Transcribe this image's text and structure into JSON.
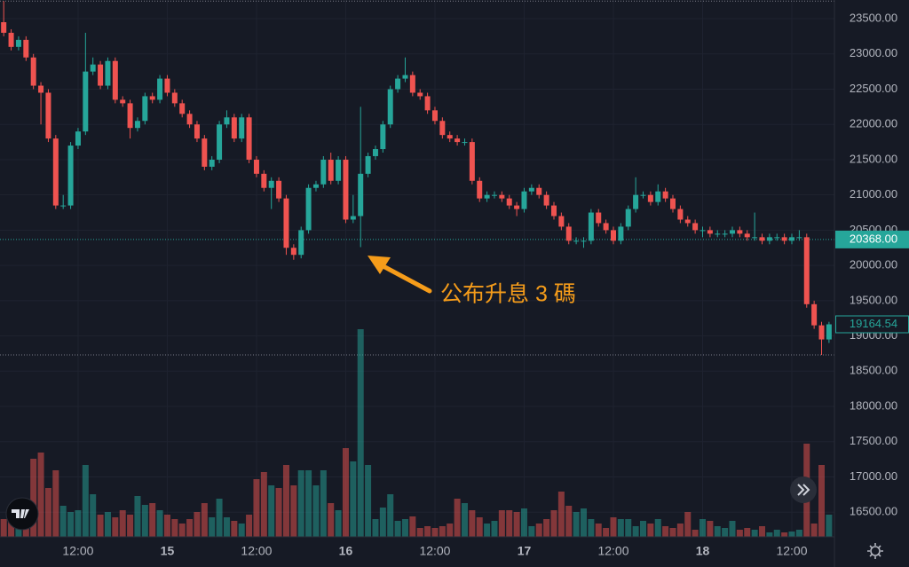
{
  "chart_data": {
    "type": "candlestick",
    "open": [
      23450,
      23300,
      23100,
      23200,
      22950,
      22550,
      22450,
      21800,
      20850,
      20850,
      21700,
      21900,
      22750,
      22850,
      22550,
      22900,
      22350,
      22300,
      21950,
      22050,
      22400,
      22350,
      22650,
      22450,
      22300,
      22150,
      22000,
      21800,
      21400,
      21500,
      22000,
      22100,
      21800,
      22100,
      21500,
      21300,
      21100,
      21200,
      20950,
      20250,
      20150,
      20500,
      21100,
      21150,
      21500,
      21200,
      21500,
      20650,
      20700,
      21300,
      21550,
      21650,
      22000,
      22500,
      22650,
      22700,
      22450,
      22400,
      22200,
      22050,
      21850,
      21800,
      21750,
      21750,
      21200,
      20950,
      21000,
      21000,
      20950,
      20850,
      20800,
      21050,
      21100,
      21000,
      20850,
      20700,
      20550,
      20350,
      20350,
      20350,
      20750,
      20600,
      20500,
      20350,
      20550,
      20800,
      21000,
      21000,
      20900,
      21050,
      20950,
      20800,
      20650,
      20600,
      20500,
      20500,
      20450,
      20450,
      20450,
      20500,
      20450,
      20400,
      20400,
      20350,
      20400,
      20400,
      20350,
      20400,
      20400,
      19450,
      19150,
      18950
    ],
    "high": [
      23750,
      23350,
      23250,
      23250,
      23000,
      22600,
      22500,
      21850,
      21000,
      21750,
      21950,
      23300,
      22950,
      22900,
      22950,
      22950,
      22400,
      22350,
      22100,
      22450,
      22450,
      22700,
      22700,
      22500,
      22350,
      22200,
      22050,
      21850,
      21550,
      22050,
      22200,
      22150,
      22150,
      22150,
      21550,
      21350,
      21250,
      21250,
      21000,
      20300,
      20550,
      21150,
      21200,
      21550,
      21600,
      21550,
      21550,
      21000,
      22250,
      21600,
      21700,
      22050,
      22550,
      22700,
      22950,
      22750,
      22500,
      22450,
      22250,
      22100,
      21900,
      21850,
      21800,
      21800,
      21250,
      21050,
      21050,
      21050,
      21000,
      20900,
      21100,
      21150,
      21150,
      21050,
      20900,
      20750,
      20600,
      20400,
      20400,
      20800,
      20800,
      20650,
      20550,
      20600,
      20850,
      21250,
      21050,
      21050,
      21150,
      21100,
      21000,
      20850,
      20700,
      20650,
      20550,
      20550,
      20500,
      20500,
      20550,
      20550,
      20500,
      20750,
      20450,
      20450,
      20450,
      20450,
      20450,
      20500,
      20450,
      19500,
      19200,
      19200
    ],
    "low": [
      23250,
      23050,
      23050,
      22900,
      22500,
      22000,
      21750,
      20800,
      20800,
      20800,
      21650,
      21850,
      22700,
      22500,
      22500,
      22300,
      22250,
      21800,
      21900,
      22000,
      22300,
      22300,
      22400,
      22250,
      22100,
      21950,
      21750,
      21350,
      21350,
      21450,
      21950,
      21750,
      21750,
      21450,
      21250,
      21050,
      20800,
      20900,
      20150,
      20080,
      20100,
      20450,
      21050,
      21100,
      21150,
      21150,
      20600,
      20600,
      20260,
      21250,
      21500,
      21600,
      21950,
      22450,
      22600,
      22400,
      22350,
      22150,
      22000,
      21800,
      21750,
      21700,
      21700,
      21150,
      20900,
      20900,
      20950,
      20900,
      20800,
      20700,
      20750,
      21000,
      20950,
      20800,
      20650,
      20500,
      20300,
      20300,
      20250,
      20300,
      20550,
      20450,
      20300,
      20300,
      20500,
      20750,
      20950,
      20850,
      20850,
      20900,
      20750,
      20600,
      20550,
      20450,
      20400,
      20400,
      20400,
      20400,
      20400,
      20400,
      20350,
      20350,
      20300,
      20300,
      20350,
      20300,
      20300,
      20350,
      19400,
      19100,
      18730,
      18900
    ],
    "close": [
      23300,
      23100,
      23200,
      22950,
      22550,
      22450,
      21800,
      20850,
      20850,
      21700,
      21900,
      22750,
      22850,
      22550,
      22900,
      22350,
      22300,
      21950,
      22050,
      22400,
      22350,
      22650,
      22450,
      22300,
      22150,
      22000,
      21800,
      21400,
      21500,
      22000,
      22100,
      21800,
      22100,
      21500,
      21300,
      21100,
      21200,
      20950,
      20250,
      20150,
      20500,
      21100,
      21150,
      21500,
      21200,
      21500,
      20650,
      20700,
      21300,
      21550,
      21650,
      22000,
      22500,
      22650,
      22700,
      22450,
      22400,
      22200,
      22050,
      21850,
      21800,
      21750,
      21750,
      21200,
      20950,
      21000,
      21000,
      20950,
      20850,
      20800,
      21050,
      21100,
      21000,
      20850,
      20700,
      20550,
      20350,
      20350,
      20350,
      20750,
      20600,
      20500,
      20350,
      20550,
      20800,
      21000,
      21000,
      20900,
      21050,
      20950,
      20800,
      20650,
      20600,
      20500,
      20500,
      20450,
      20450,
      20450,
      20500,
      20450,
      20400,
      20400,
      20350,
      20400,
      20400,
      20350,
      20400,
      20400,
      19450,
      19150,
      18950,
      19164.54
    ],
    "volume": [
      20,
      25,
      40,
      30,
      88,
      95,
      55,
      75,
      35,
      28,
      30,
      81,
      48,
      25,
      28,
      22,
      30,
      25,
      46,
      36,
      38,
      30,
      25,
      20,
      15,
      20,
      28,
      38,
      22,
      43,
      22,
      18,
      15,
      25,
      65,
      73,
      58,
      55,
      81,
      58,
      75,
      75,
      58,
      75,
      38,
      30,
      100,
      85,
      234,
      81,
      20,
      33,
      48,
      18,
      20,
      23,
      10,
      12,
      10,
      12,
      15,
      43,
      38,
      30,
      22,
      15,
      18,
      30,
      30,
      28,
      32,
      12,
      15,
      20,
      30,
      51,
      35,
      28,
      32,
      20,
      15,
      10,
      22,
      20,
      20,
      12,
      18,
      15,
      20,
      12,
      10,
      15,
      28,
      8,
      20,
      18,
      12,
      10,
      18,
      8,
      10,
      8,
      12,
      5,
      8,
      5,
      6,
      8,
      105,
      15,
      81,
      25
    ],
    "up_color": "#26a69a",
    "down_color": "#ef5350",
    "ylim": [
      16150,
      23765
    ],
    "yticks": [
      {
        "value": 16500,
        "label": "16500.00"
      },
      {
        "value": 17000,
        "label": "17000.00"
      },
      {
        "value": 17500,
        "label": "17500.00"
      },
      {
        "value": 18000,
        "label": "18000.00"
      },
      {
        "value": 18500,
        "label": "18500.00"
      },
      {
        "value": 19000,
        "label": "19000.00"
      },
      {
        "value": 19500,
        "label": "19500.00"
      },
      {
        "value": 20000,
        "label": "20000.00"
      },
      {
        "value": 20500,
        "label": "20500.00"
      },
      {
        "value": 21000,
        "label": "21000.00"
      },
      {
        "value": 21500,
        "label": "21500.00"
      },
      {
        "value": 22000,
        "label": "22000.00"
      },
      {
        "value": 22500,
        "label": "22500.00"
      },
      {
        "value": 23000,
        "label": "23000.00"
      },
      {
        "value": 23500,
        "label": "23500.00"
      }
    ],
    "xlim": [
      -0.5,
      111.73
    ],
    "xticks": [
      {
        "value": 10,
        "label": "12:00"
      },
      {
        "value": 22,
        "label": "15"
      },
      {
        "value": 34,
        "label": "12:00"
      },
      {
        "value": 46,
        "label": "16"
      },
      {
        "value": 58,
        "label": "12:00"
      },
      {
        "value": 70,
        "label": "17"
      },
      {
        "value": 82,
        "label": "12:00"
      },
      {
        "value": 94,
        "label": "18"
      },
      {
        "value": 106,
        "label": "12:00"
      }
    ],
    "grid": true,
    "price_line": {
      "value": 20368,
      "label": "20368.00"
    },
    "annotation": "公布升息 3 碼"
  }
}
